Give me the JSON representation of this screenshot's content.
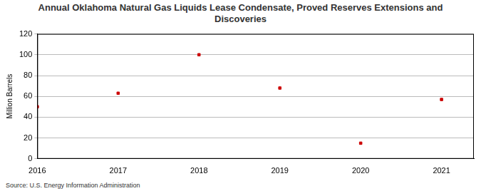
{
  "chart_data": {
    "type": "scatter",
    "title": "Annual Oklahoma Natural Gas Liquids Lease Condensate, Proved Reserves Extensions and Discoveries",
    "y_label": "Million Barrels",
    "source": "Source: U.S. Energy Information Administration",
    "x": [
      2016,
      2017,
      2018,
      2019,
      2020,
      2021
    ],
    "values": [
      50,
      63,
      100,
      68,
      15,
      57
    ],
    "color": "#cc0000",
    "marker": "square",
    "xlim": [
      2016,
      2021.4
    ],
    "xticks": [
      2016,
      2017,
      2018,
      2019,
      2020,
      2021
    ],
    "ylim": [
      0,
      120
    ],
    "yticks": [
      0,
      20,
      40,
      60,
      80,
      100,
      120
    ],
    "grid": true
  }
}
